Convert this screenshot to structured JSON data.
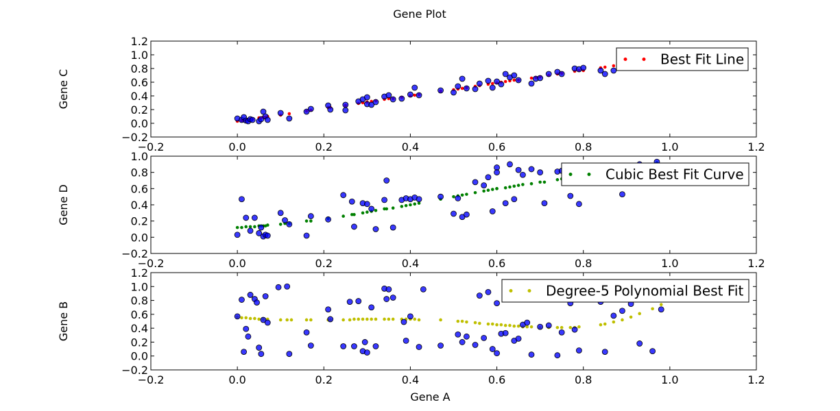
{
  "figure": {
    "title": "Gene Plot"
  },
  "chart_data": [
    {
      "type": "scatter",
      "xlabel": "",
      "ylabel": "Gene C",
      "xlim": [
        -0.2,
        1.2
      ],
      "ylim": [
        -0.2,
        1.2
      ],
      "xticks": [
        "−0.2",
        "0.0",
        "0.2",
        "0.4",
        "0.6",
        "0.8",
        "1.0",
        "1.2"
      ],
      "yticks": [
        "−0.2",
        "0.0",
        "0.2",
        "0.4",
        "0.6",
        "0.8",
        "1.0",
        "1.2"
      ],
      "legend": {
        "label": "Best Fit Line",
        "placement": "top-right",
        "color": "#ff0000"
      },
      "scatter_color": "#0000ff",
      "scatter": {
        "x": [
          0.0,
          0.01,
          0.015,
          0.02,
          0.025,
          0.03,
          0.035,
          0.05,
          0.055,
          0.06,
          0.065,
          0.07,
          0.1,
          0.12,
          0.16,
          0.17,
          0.21,
          0.215,
          0.25,
          0.25,
          0.28,
          0.29,
          0.3,
          0.3,
          0.31,
          0.32,
          0.34,
          0.35,
          0.36,
          0.38,
          0.4,
          0.41,
          0.42,
          0.47,
          0.5,
          0.51,
          0.52,
          0.53,
          0.55,
          0.56,
          0.58,
          0.59,
          0.6,
          0.61,
          0.62,
          0.63,
          0.64,
          0.65,
          0.68,
          0.69,
          0.7,
          0.72,
          0.74,
          0.75,
          0.78,
          0.79,
          0.8,
          0.84,
          0.85,
          0.87,
          0.89,
          0.9,
          0.96,
          0.98
        ],
        "y": [
          0.07,
          0.05,
          0.09,
          0.04,
          0.03,
          0.06,
          0.05,
          0.03,
          0.06,
          0.17,
          0.1,
          0.05,
          0.15,
          0.07,
          0.17,
          0.21,
          0.26,
          0.2,
          0.19,
          0.27,
          0.32,
          0.35,
          0.28,
          0.38,
          0.27,
          0.31,
          0.39,
          0.41,
          0.35,
          0.36,
          0.42,
          0.52,
          0.41,
          0.48,
          0.45,
          0.54,
          0.65,
          0.51,
          0.5,
          0.58,
          0.62,
          0.52,
          0.61,
          0.57,
          0.72,
          0.67,
          0.7,
          0.63,
          0.58,
          0.65,
          0.66,
          0.72,
          0.75,
          0.72,
          0.8,
          0.79,
          0.81,
          0.77,
          0.72,
          0.77,
          0.89,
          0.85,
          0.92,
          0.88
        ]
      },
      "fit": {
        "x": [
          0.0,
          0.01,
          0.015,
          0.02,
          0.025,
          0.03,
          0.035,
          0.05,
          0.055,
          0.06,
          0.065,
          0.07,
          0.1,
          0.12,
          0.16,
          0.17,
          0.21,
          0.215,
          0.25,
          0.25,
          0.28,
          0.29,
          0.3,
          0.3,
          0.31,
          0.32,
          0.34,
          0.35,
          0.36,
          0.38,
          0.4,
          0.41,
          0.42,
          0.47,
          0.5,
          0.51,
          0.52,
          0.53,
          0.55,
          0.56,
          0.58,
          0.59,
          0.6,
          0.61,
          0.62,
          0.63,
          0.64,
          0.65,
          0.68,
          0.69,
          0.7,
          0.72,
          0.74,
          0.75,
          0.78,
          0.79,
          0.8,
          0.84,
          0.85,
          0.87,
          0.89,
          0.9,
          0.96,
          0.98
        ],
        "y": [
          0.03,
          0.04,
          0.04,
          0.05,
          0.05,
          0.06,
          0.06,
          0.08,
          0.08,
          0.09,
          0.09,
          0.1,
          0.12,
          0.14,
          0.18,
          0.19,
          0.23,
          0.23,
          0.26,
          0.26,
          0.29,
          0.3,
          0.31,
          0.31,
          0.32,
          0.33,
          0.35,
          0.36,
          0.36,
          0.38,
          0.4,
          0.41,
          0.42,
          0.47,
          0.49,
          0.5,
          0.51,
          0.52,
          0.54,
          0.55,
          0.57,
          0.58,
          0.59,
          0.6,
          0.61,
          0.62,
          0.63,
          0.63,
          0.66,
          0.67,
          0.68,
          0.7,
          0.72,
          0.73,
          0.76,
          0.77,
          0.77,
          0.81,
          0.82,
          0.84,
          0.86,
          0.87,
          0.92,
          0.94
        ]
      }
    },
    {
      "type": "scatter",
      "xlabel": "",
      "ylabel": "Gene D",
      "xlim": [
        -0.2,
        1.2
      ],
      "ylim": [
        -0.2,
        1.0
      ],
      "xticks": [
        "−0.2",
        "0.0",
        "0.2",
        "0.4",
        "0.6",
        "0.8",
        "1.0",
        "1.2"
      ],
      "yticks": [
        "−0.2",
        "0.0",
        "0.2",
        "0.4",
        "0.6",
        "0.8",
        "1.0"
      ],
      "legend": {
        "label": "Cubic Best Fit Curve",
        "placement": "top-right",
        "color": "#008000"
      },
      "scatter_color": "#0000ff",
      "scatter": {
        "x": [
          0.0,
          0.01,
          0.02,
          0.03,
          0.04,
          0.05,
          0.055,
          0.06,
          0.065,
          0.07,
          0.1,
          0.11,
          0.12,
          0.16,
          0.17,
          0.21,
          0.245,
          0.265,
          0.27,
          0.29,
          0.3,
          0.31,
          0.32,
          0.34,
          0.345,
          0.36,
          0.38,
          0.39,
          0.4,
          0.41,
          0.42,
          0.47,
          0.5,
          0.51,
          0.52,
          0.53,
          0.55,
          0.57,
          0.58,
          0.59,
          0.6,
          0.6,
          0.62,
          0.63,
          0.64,
          0.65,
          0.66,
          0.68,
          0.7,
          0.71,
          0.74,
          0.75,
          0.77,
          0.78,
          0.79,
          0.84,
          0.89,
          0.93,
          0.97
        ],
        "y": [
          0.03,
          0.47,
          0.24,
          0.08,
          0.24,
          0.05,
          0.12,
          0.01,
          0.03,
          0.02,
          0.3,
          0.21,
          0.16,
          0.02,
          0.26,
          0.22,
          0.52,
          0.44,
          0.13,
          0.42,
          0.41,
          0.35,
          0.1,
          0.46,
          0.7,
          0.12,
          0.46,
          0.48,
          0.47,
          0.49,
          0.47,
          0.5,
          0.29,
          0.48,
          0.25,
          0.28,
          0.68,
          0.64,
          0.74,
          0.32,
          0.86,
          0.8,
          0.42,
          0.9,
          0.47,
          0.83,
          0.77,
          0.84,
          0.8,
          0.42,
          0.81,
          0.82,
          0.51,
          0.85,
          0.41,
          0.82,
          0.53,
          0.9,
          0.93
        ]
      },
      "fit": {
        "x": [
          0.0,
          0.01,
          0.02,
          0.03,
          0.04,
          0.05,
          0.055,
          0.06,
          0.065,
          0.07,
          0.1,
          0.11,
          0.12,
          0.16,
          0.17,
          0.21,
          0.245,
          0.265,
          0.27,
          0.29,
          0.3,
          0.31,
          0.32,
          0.34,
          0.345,
          0.36,
          0.38,
          0.39,
          0.4,
          0.41,
          0.42,
          0.47,
          0.5,
          0.51,
          0.52,
          0.53,
          0.55,
          0.57,
          0.58,
          0.59,
          0.6,
          0.6,
          0.62,
          0.63,
          0.64,
          0.65,
          0.66,
          0.68,
          0.7,
          0.71,
          0.74,
          0.75,
          0.77,
          0.78,
          0.79,
          0.84,
          0.89,
          0.93,
          0.97
        ],
        "y": [
          0.12,
          0.12,
          0.13,
          0.13,
          0.13,
          0.14,
          0.14,
          0.14,
          0.14,
          0.15,
          0.16,
          0.17,
          0.17,
          0.2,
          0.2,
          0.23,
          0.26,
          0.28,
          0.28,
          0.3,
          0.31,
          0.32,
          0.33,
          0.35,
          0.35,
          0.36,
          0.38,
          0.39,
          0.4,
          0.41,
          0.42,
          0.47,
          0.5,
          0.51,
          0.52,
          0.53,
          0.55,
          0.57,
          0.58,
          0.59,
          0.6,
          0.6,
          0.61,
          0.62,
          0.63,
          0.64,
          0.65,
          0.66,
          0.68,
          0.68,
          0.71,
          0.72,
          0.73,
          0.74,
          0.75,
          0.79,
          0.83,
          0.87,
          0.92
        ]
      }
    },
    {
      "type": "scatter",
      "xlabel": "Gene A",
      "ylabel": "Gene B",
      "xlim": [
        -0.2,
        1.2
      ],
      "ylim": [
        -0.2,
        1.2
      ],
      "xticks": [
        "−0.2",
        "0.0",
        "0.2",
        "0.4",
        "0.6",
        "0.8",
        "1.0",
        "1.2"
      ],
      "yticks": [
        "−0.2",
        "0.0",
        "0.2",
        "0.4",
        "0.6",
        "0.8",
        "1.0",
        "1.2"
      ],
      "legend": {
        "label": "Degree-5 Polynomial Best Fit",
        "placement": "top-right",
        "color": "#bfbf00"
      },
      "scatter_color": "#0000ff",
      "scatter": {
        "x": [
          0.0,
          0.01,
          0.015,
          0.02,
          0.025,
          0.03,
          0.04,
          0.045,
          0.05,
          0.055,
          0.06,
          0.065,
          0.07,
          0.095,
          0.115,
          0.12,
          0.16,
          0.17,
          0.21,
          0.215,
          0.245,
          0.26,
          0.27,
          0.28,
          0.29,
          0.295,
          0.3,
          0.31,
          0.32,
          0.34,
          0.345,
          0.35,
          0.36,
          0.385,
          0.39,
          0.4,
          0.42,
          0.43,
          0.47,
          0.51,
          0.52,
          0.53,
          0.55,
          0.56,
          0.57,
          0.58,
          0.59,
          0.6,
          0.6,
          0.61,
          0.62,
          0.63,
          0.64,
          0.65,
          0.66,
          0.67,
          0.68,
          0.7,
          0.72,
          0.74,
          0.75,
          0.77,
          0.78,
          0.79,
          0.84,
          0.85,
          0.87,
          0.89,
          0.91,
          0.93,
          0.96,
          0.98
        ],
        "y": [
          0.57,
          0.81,
          0.06,
          0.39,
          0.28,
          0.88,
          0.82,
          0.77,
          0.12,
          0.03,
          0.52,
          0.86,
          0.48,
          0.99,
          1.0,
          0.03,
          0.34,
          0.15,
          0.67,
          0.53,
          0.14,
          0.78,
          0.14,
          0.79,
          0.07,
          0.2,
          0.05,
          0.7,
          0.14,
          0.97,
          0.82,
          0.96,
          0.84,
          0.49,
          0.22,
          0.57,
          0.13,
          0.96,
          0.15,
          0.31,
          0.2,
          0.28,
          0.16,
          0.87,
          0.26,
          0.92,
          0.1,
          0.76,
          0.04,
          0.32,
          0.33,
          0.97,
          0.22,
          0.25,
          0.45,
          0.48,
          0.02,
          0.42,
          0.44,
          0.01,
          0.34,
          0.76,
          0.38,
          0.08,
          0.78,
          0.06,
          0.58,
          0.65,
          0.75,
          0.18,
          0.07,
          0.67
        ],
        "extra": [
          0.73,
          0.32,
          0.67,
          0.59,
          0.64
        ]
      },
      "fit": {
        "x": [
          0.0,
          0.01,
          0.02,
          0.03,
          0.04,
          0.05,
          0.06,
          0.07,
          0.1,
          0.115,
          0.125,
          0.16,
          0.17,
          0.21,
          0.215,
          0.245,
          0.26,
          0.27,
          0.28,
          0.29,
          0.3,
          0.31,
          0.32,
          0.34,
          0.35,
          0.36,
          0.38,
          0.39,
          0.4,
          0.41,
          0.42,
          0.47,
          0.51,
          0.52,
          0.53,
          0.55,
          0.56,
          0.58,
          0.59,
          0.6,
          0.61,
          0.62,
          0.63,
          0.64,
          0.65,
          0.66,
          0.67,
          0.68,
          0.7,
          0.72,
          0.74,
          0.75,
          0.77,
          0.78,
          0.79,
          0.84,
          0.85,
          0.87,
          0.89,
          0.91,
          0.93,
          0.96,
          0.98
        ],
        "y": [
          0.56,
          0.55,
          0.55,
          0.54,
          0.54,
          0.53,
          0.53,
          0.53,
          0.52,
          0.52,
          0.52,
          0.52,
          0.52,
          0.52,
          0.52,
          0.52,
          0.52,
          0.53,
          0.53,
          0.53,
          0.53,
          0.53,
          0.53,
          0.53,
          0.53,
          0.53,
          0.53,
          0.53,
          0.53,
          0.53,
          0.52,
          0.52,
          0.5,
          0.5,
          0.49,
          0.48,
          0.47,
          0.46,
          0.46,
          0.45,
          0.45,
          0.44,
          0.44,
          0.43,
          0.43,
          0.42,
          0.42,
          0.42,
          0.41,
          0.41,
          0.41,
          0.41,
          0.41,
          0.41,
          0.42,
          0.45,
          0.46,
          0.49,
          0.52,
          0.56,
          0.61,
          0.68,
          0.74
        ]
      }
    }
  ]
}
